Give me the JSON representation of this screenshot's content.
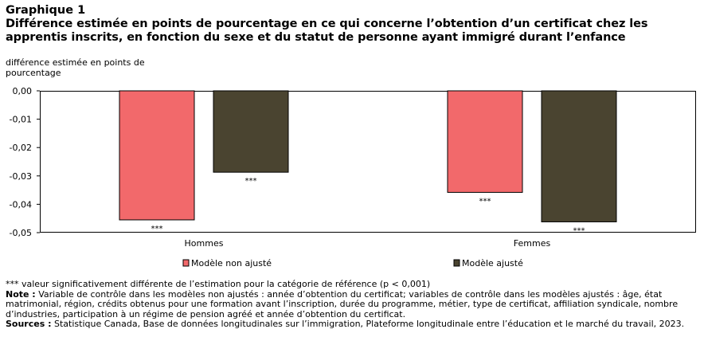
{
  "header": {
    "title": "Graphique 1",
    "subtitle": "Différence estimée en points de pourcentage en ce qui concerne l’obtention d’un certificat chez les apprentis inscrits, en fonction du sexe et du statut de personne ayant immigré durant l’enfance",
    "y_axis_label": "différence estimée en points de pourcentage"
  },
  "chart_data": {
    "type": "bar",
    "categories": [
      "Hommes",
      "Femmes"
    ],
    "series": [
      {
        "name": "Modèle non ajusté",
        "color": "#f2696b",
        "values": [
          -0.0455,
          -0.0358
        ],
        "annotations": [
          "***",
          "***"
        ]
      },
      {
        "name": "Modèle ajusté",
        "color": "#4a4430",
        "values": [
          -0.0287,
          -0.0462
        ],
        "annotations": [
          "***",
          "***"
        ]
      }
    ],
    "yticks": [
      "0,00",
      "-0,01",
      "-0,02",
      "-0,03",
      "-0,04",
      "-0,05"
    ],
    "ylim": [
      -0.05,
      0
    ],
    "ylabel": "différence estimée en points de pourcentage",
    "legend_position": "bottom",
    "grid": false
  },
  "footnotes": {
    "significance": "*** valeur significativement différente de l’estimation pour la catégorie de référence (p < 0,001)",
    "note_label": "Note :",
    "note_text": " Variable de contrôle dans les modèles non ajustés : année d’obtention du certificat; variables de contrôle dans les modèles ajustés : âge, état matrimonial, région, crédits obtenus pour une formation avant l’inscription, durée du programme, métier, type de certificat, affiliation syndicale, nombre d’industries, participation à un régime de pension agréé et année d’obtention du certificat.",
    "sources_label": "Sources :",
    "sources_text": " Statistique Canada, Base de données longitudinales sur l’immigration, Plateforme longitudinale entre l’éducation et le marché du travail, 2023."
  }
}
